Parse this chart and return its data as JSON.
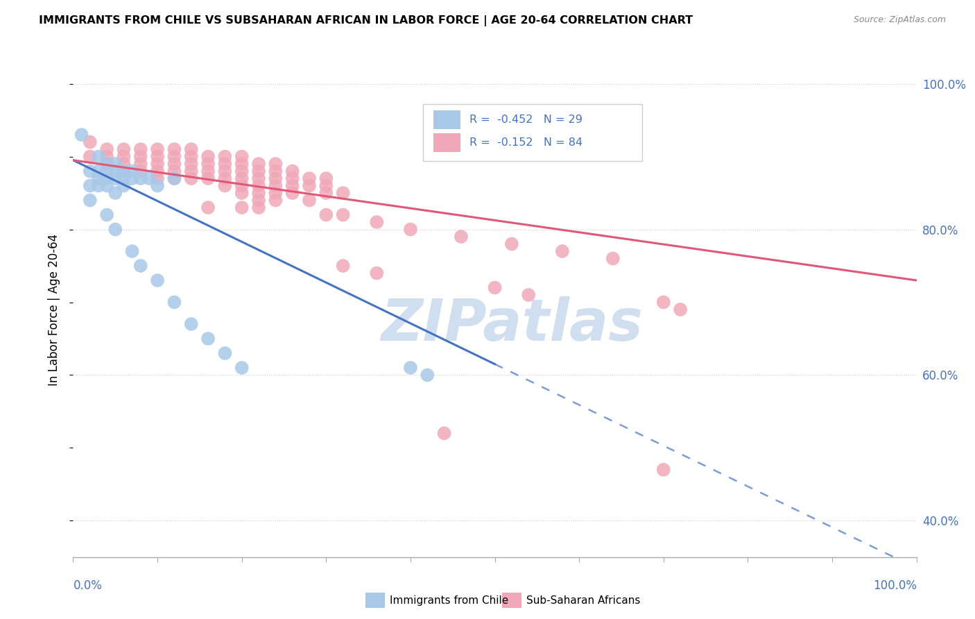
{
  "title": "IMMIGRANTS FROM CHILE VS SUBSAHARAN AFRICAN IN LABOR FORCE | AGE 20-64 CORRELATION CHART",
  "source": "Source: ZipAtlas.com",
  "ylabel": "In Labor Force | Age 20-64",
  "blue_color": "#a8c8e8",
  "pink_color": "#f0a8b8",
  "blue_line_color": "#4472c4",
  "pink_line_color": "#e05878",
  "watermark_color": "#d0dff0",
  "blue_scatter": [
    [
      0.01,
      0.93
    ],
    [
      0.02,
      0.88
    ],
    [
      0.02,
      0.86
    ],
    [
      0.02,
      0.84
    ],
    [
      0.03,
      0.9
    ],
    [
      0.03,
      0.88
    ],
    [
      0.03,
      0.87
    ],
    [
      0.03,
      0.86
    ],
    [
      0.04,
      0.89
    ],
    [
      0.04,
      0.88
    ],
    [
      0.04,
      0.87
    ],
    [
      0.04,
      0.86
    ],
    [
      0.05,
      0.89
    ],
    [
      0.05,
      0.88
    ],
    [
      0.05,
      0.87
    ],
    [
      0.05,
      0.85
    ],
    [
      0.06,
      0.88
    ],
    [
      0.06,
      0.87
    ],
    [
      0.06,
      0.86
    ],
    [
      0.07,
      0.88
    ],
    [
      0.07,
      0.87
    ],
    [
      0.08,
      0.87
    ],
    [
      0.09,
      0.87
    ],
    [
      0.1,
      0.86
    ],
    [
      0.12,
      0.87
    ],
    [
      0.04,
      0.82
    ],
    [
      0.05,
      0.8
    ],
    [
      0.07,
      0.77
    ],
    [
      0.08,
      0.75
    ],
    [
      0.1,
      0.73
    ],
    [
      0.12,
      0.7
    ],
    [
      0.14,
      0.67
    ],
    [
      0.16,
      0.65
    ],
    [
      0.18,
      0.63
    ],
    [
      0.2,
      0.61
    ],
    [
      0.4,
      0.61
    ],
    [
      0.42,
      0.6
    ]
  ],
  "pink_scatter": [
    [
      0.02,
      0.92
    ],
    [
      0.04,
      0.91
    ],
    [
      0.06,
      0.91
    ],
    [
      0.08,
      0.91
    ],
    [
      0.1,
      0.91
    ],
    [
      0.12,
      0.91
    ],
    [
      0.14,
      0.91
    ],
    [
      0.02,
      0.9
    ],
    [
      0.04,
      0.9
    ],
    [
      0.06,
      0.9
    ],
    [
      0.08,
      0.9
    ],
    [
      0.1,
      0.9
    ],
    [
      0.12,
      0.9
    ],
    [
      0.14,
      0.9
    ],
    [
      0.16,
      0.9
    ],
    [
      0.18,
      0.9
    ],
    [
      0.2,
      0.9
    ],
    [
      0.04,
      0.89
    ],
    [
      0.06,
      0.89
    ],
    [
      0.08,
      0.89
    ],
    [
      0.1,
      0.89
    ],
    [
      0.12,
      0.89
    ],
    [
      0.14,
      0.89
    ],
    [
      0.16,
      0.89
    ],
    [
      0.18,
      0.89
    ],
    [
      0.2,
      0.89
    ],
    [
      0.22,
      0.89
    ],
    [
      0.24,
      0.89
    ],
    [
      0.06,
      0.88
    ],
    [
      0.08,
      0.88
    ],
    [
      0.1,
      0.88
    ],
    [
      0.12,
      0.88
    ],
    [
      0.14,
      0.88
    ],
    [
      0.16,
      0.88
    ],
    [
      0.18,
      0.88
    ],
    [
      0.2,
      0.88
    ],
    [
      0.22,
      0.88
    ],
    [
      0.24,
      0.88
    ],
    [
      0.26,
      0.88
    ],
    [
      0.1,
      0.87
    ],
    [
      0.12,
      0.87
    ],
    [
      0.14,
      0.87
    ],
    [
      0.16,
      0.87
    ],
    [
      0.18,
      0.87
    ],
    [
      0.2,
      0.87
    ],
    [
      0.22,
      0.87
    ],
    [
      0.24,
      0.87
    ],
    [
      0.26,
      0.87
    ],
    [
      0.28,
      0.87
    ],
    [
      0.3,
      0.87
    ],
    [
      0.18,
      0.86
    ],
    [
      0.2,
      0.86
    ],
    [
      0.22,
      0.86
    ],
    [
      0.24,
      0.86
    ],
    [
      0.26,
      0.86
    ],
    [
      0.28,
      0.86
    ],
    [
      0.3,
      0.86
    ],
    [
      0.2,
      0.85
    ],
    [
      0.22,
      0.85
    ],
    [
      0.24,
      0.85
    ],
    [
      0.26,
      0.85
    ],
    [
      0.3,
      0.85
    ],
    [
      0.32,
      0.85
    ],
    [
      0.22,
      0.84
    ],
    [
      0.24,
      0.84
    ],
    [
      0.28,
      0.84
    ],
    [
      0.16,
      0.83
    ],
    [
      0.2,
      0.83
    ],
    [
      0.22,
      0.83
    ],
    [
      0.3,
      0.82
    ],
    [
      0.32,
      0.82
    ],
    [
      0.36,
      0.81
    ],
    [
      0.4,
      0.8
    ],
    [
      0.46,
      0.79
    ],
    [
      0.52,
      0.78
    ],
    [
      0.58,
      0.77
    ],
    [
      0.64,
      0.76
    ],
    [
      0.32,
      0.75
    ],
    [
      0.36,
      0.74
    ],
    [
      0.5,
      0.72
    ],
    [
      0.54,
      0.71
    ],
    [
      0.7,
      0.7
    ],
    [
      0.72,
      0.69
    ],
    [
      0.44,
      0.52
    ],
    [
      0.7,
      0.47
    ]
  ],
  "blue_line_solid": [
    [
      0.0,
      0.895
    ],
    [
      0.5,
      0.615
    ]
  ],
  "blue_line_dashed": [
    [
      0.5,
      0.615
    ],
    [
      1.0,
      0.335
    ]
  ],
  "pink_line": [
    [
      0.0,
      0.895
    ],
    [
      1.0,
      0.73
    ]
  ],
  "xlim": [
    0.0,
    1.0
  ],
  "ylim": [
    0.35,
    1.03
  ],
  "yticks": [
    0.4,
    0.6,
    0.8,
    1.0
  ],
  "ytick_labels": [
    "40.0%",
    "60.0%",
    "80.0%",
    "100.0%"
  ]
}
